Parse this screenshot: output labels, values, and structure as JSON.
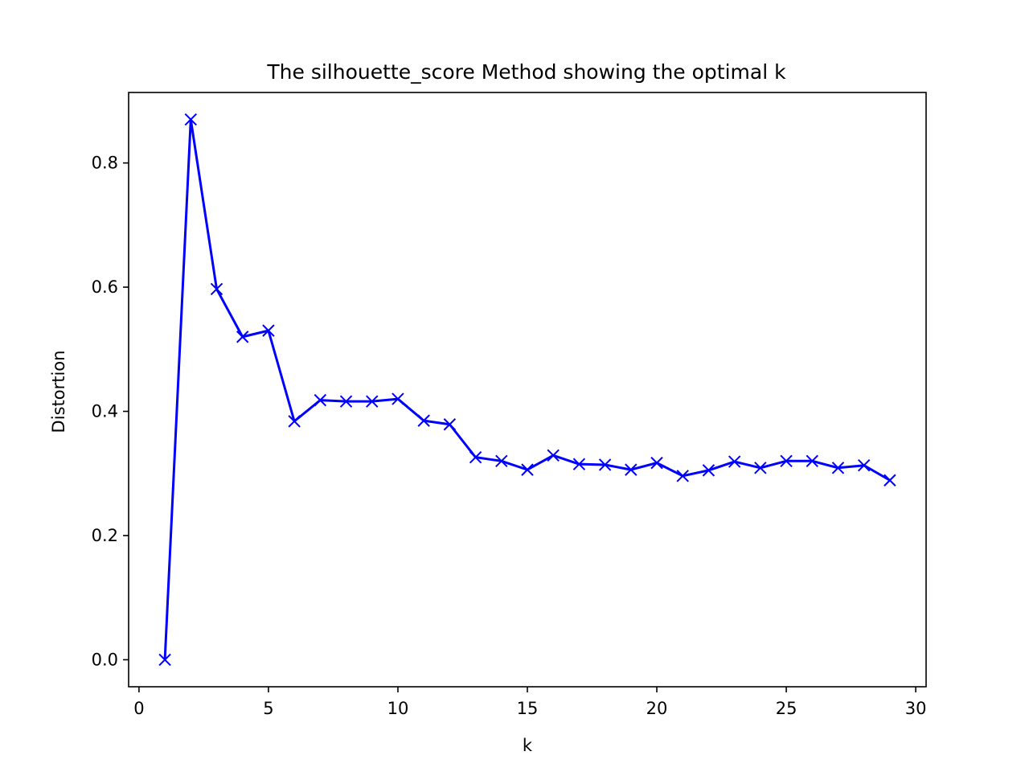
{
  "chart_data": {
    "type": "line",
    "title": "The silhouette_score Method showing the optimal k",
    "xlabel": "k",
    "ylabel": "Distortion",
    "xlim": [
      -0.4,
      30.4
    ],
    "ylim": [
      -0.0435,
      0.9135
    ],
    "x_ticks": [
      0,
      5,
      10,
      15,
      20,
      25,
      30
    ],
    "x_tick_labels": [
      "0",
      "5",
      "10",
      "15",
      "20",
      "25",
      "30"
    ],
    "y_ticks": [
      0.0,
      0.2,
      0.4,
      0.6,
      0.8
    ],
    "y_tick_labels": [
      "0.0",
      "0.2",
      "0.4",
      "0.6",
      "0.8"
    ],
    "grid": false,
    "legend": "none",
    "series": [
      {
        "color": "#0000ff",
        "marker": "x",
        "x": [
          1,
          2,
          3,
          4,
          5,
          6,
          7,
          8,
          9,
          10,
          11,
          12,
          13,
          14,
          15,
          16,
          17,
          18,
          19,
          20,
          21,
          22,
          23,
          24,
          25,
          26,
          27,
          28,
          29
        ],
        "y": [
          0.0,
          0.87,
          0.597,
          0.52,
          0.53,
          0.384,
          0.418,
          0.416,
          0.416,
          0.42,
          0.385,
          0.379,
          0.326,
          0.32,
          0.306,
          0.329,
          0.315,
          0.314,
          0.306,
          0.317,
          0.296,
          0.305,
          0.319,
          0.309,
          0.32,
          0.32,
          0.309,
          0.313,
          0.289
        ]
      }
    ]
  }
}
